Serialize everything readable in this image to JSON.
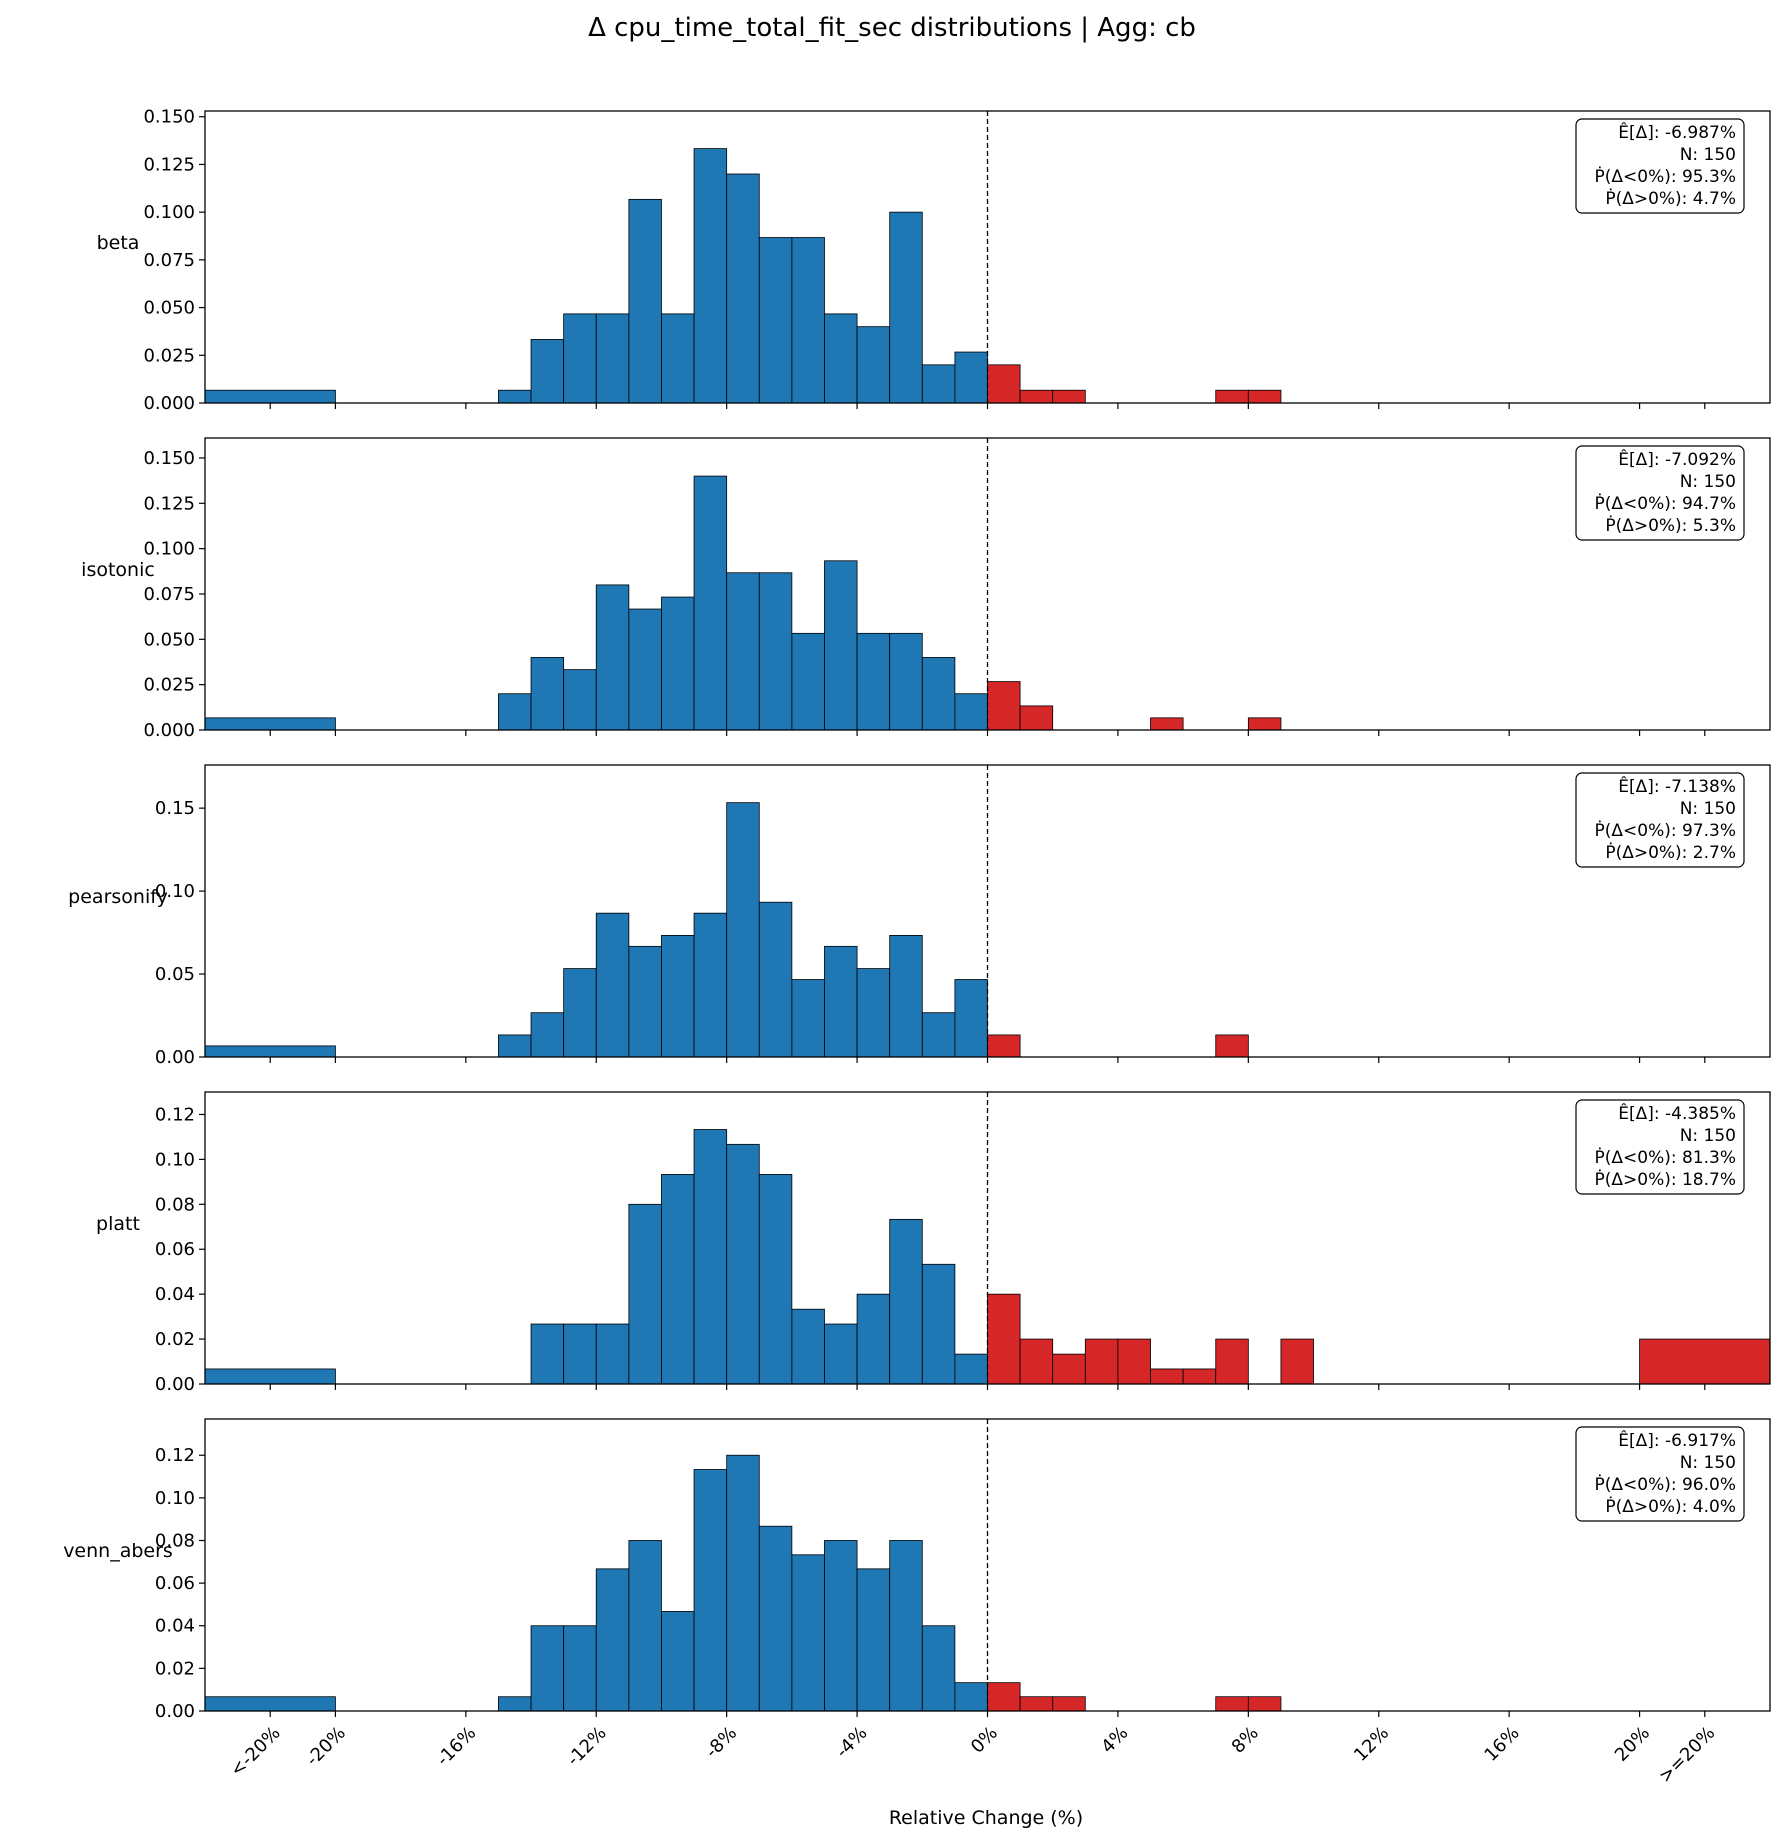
{
  "chart_data": {
    "type": "bar",
    "title": "Δ cpu_time_total_fit_sec distributions | Agg: cb",
    "xlabel": "Relative Change (%)",
    "x_ticks": [
      "<-20%",
      "-20%",
      "-16%",
      "-12%",
      "-8%",
      "-4%",
      "0%",
      "4%",
      "8%",
      "12%",
      "16%",
      "20%",
      ">=20%"
    ],
    "x_tick_values": [
      -22,
      -20,
      -16,
      -12,
      -8,
      -4,
      0,
      4,
      8,
      12,
      16,
      20,
      22
    ],
    "xlim": [
      -24,
      24
    ],
    "zero_line": 0,
    "colors": {
      "negative": "#1f77b4",
      "positive": "#d62728",
      "edge": "#000000"
    },
    "panels": [
      {
        "name": "beta",
        "ylim": [
          0,
          0.153
        ],
        "yticks": [
          "0.000",
          "0.025",
          "0.050",
          "0.075",
          "0.100",
          "0.125",
          "0.150"
        ],
        "ytick_values": [
          0,
          0.025,
          0.05,
          0.075,
          0.1,
          0.125,
          0.15
        ],
        "bins": [
          {
            "x0": -24,
            "x1": -20,
            "value": 0.0067
          },
          {
            "x0": -15,
            "x1": -14,
            "value": 0.0067
          },
          {
            "x0": -14,
            "x1": -13,
            "value": 0.0333
          },
          {
            "x0": -13,
            "x1": -12,
            "value": 0.0467
          },
          {
            "x0": -12,
            "x1": -11,
            "value": 0.0467
          },
          {
            "x0": -11,
            "x1": -10,
            "value": 0.1067
          },
          {
            "x0": -10,
            "x1": -9,
            "value": 0.0467
          },
          {
            "x0": -9,
            "x1": -8,
            "value": 0.1333
          },
          {
            "x0": -8,
            "x1": -7,
            "value": 0.12
          },
          {
            "x0": -7,
            "x1": -6,
            "value": 0.0867
          },
          {
            "x0": -6,
            "x1": -5,
            "value": 0.0867
          },
          {
            "x0": -5,
            "x1": -4,
            "value": 0.0467
          },
          {
            "x0": -4,
            "x1": -3,
            "value": 0.04
          },
          {
            "x0": -3,
            "x1": -2,
            "value": 0.1
          },
          {
            "x0": -2,
            "x1": -1,
            "value": 0.02
          },
          {
            "x0": -1,
            "x1": 0,
            "value": 0.0267
          },
          {
            "x0": 0,
            "x1": 1,
            "value": 0.02
          },
          {
            "x0": 1,
            "x1": 2,
            "value": 0.0067
          },
          {
            "x0": 2,
            "x1": 3,
            "value": 0.0067
          },
          {
            "x0": 7,
            "x1": 8,
            "value": 0.0067
          },
          {
            "x0": 8,
            "x1": 9,
            "value": 0.0067
          }
        ],
        "stats": [
          "Ê[Δ]: -6.987%",
          "N: 150",
          "Ṗ(Δ<0%): 95.3%",
          "Ṗ(Δ>0%): 4.7%"
        ]
      },
      {
        "name": "isotonic",
        "ylim": [
          0,
          0.161
        ],
        "yticks": [
          "0.000",
          "0.025",
          "0.050",
          "0.075",
          "0.100",
          "0.125",
          "0.150"
        ],
        "ytick_values": [
          0,
          0.025,
          0.05,
          0.075,
          0.1,
          0.125,
          0.15
        ],
        "bins": [
          {
            "x0": -24,
            "x1": -20,
            "value": 0.0067
          },
          {
            "x0": -15,
            "x1": -14,
            "value": 0.02
          },
          {
            "x0": -14,
            "x1": -13,
            "value": 0.04
          },
          {
            "x0": -13,
            "x1": -12,
            "value": 0.0333
          },
          {
            "x0": -12,
            "x1": -11,
            "value": 0.08
          },
          {
            "x0": -11,
            "x1": -10,
            "value": 0.0667
          },
          {
            "x0": -10,
            "x1": -9,
            "value": 0.0733
          },
          {
            "x0": -9,
            "x1": -8,
            "value": 0.14
          },
          {
            "x0": -8,
            "x1": -7,
            "value": 0.0867
          },
          {
            "x0": -7,
            "x1": -6,
            "value": 0.0867
          },
          {
            "x0": -6,
            "x1": -5,
            "value": 0.0533
          },
          {
            "x0": -5,
            "x1": -4,
            "value": 0.0933
          },
          {
            "x0": -4,
            "x1": -3,
            "value": 0.0533
          },
          {
            "x0": -3,
            "x1": -2,
            "value": 0.0533
          },
          {
            "x0": -2,
            "x1": -1,
            "value": 0.04
          },
          {
            "x0": -1,
            "x1": 0,
            "value": 0.02
          },
          {
            "x0": 0,
            "x1": 1,
            "value": 0.0267
          },
          {
            "x0": 1,
            "x1": 2,
            "value": 0.0133
          },
          {
            "x0": 5,
            "x1": 6,
            "value": 0.0067
          },
          {
            "x0": 8,
            "x1": 9,
            "value": 0.0067
          }
        ],
        "stats": [
          "Ê[Δ]: -7.092%",
          "N: 150",
          "Ṗ(Δ<0%): 94.7%",
          "Ṗ(Δ>0%): 5.3%"
        ]
      },
      {
        "name": "pearsonify",
        "ylim": [
          0,
          0.176
        ],
        "yticks": [
          "0.00",
          "0.05",
          "0.10",
          "0.15"
        ],
        "ytick_values": [
          0,
          0.05,
          0.1,
          0.15
        ],
        "bins": [
          {
            "x0": -24,
            "x1": -20,
            "value": 0.0067
          },
          {
            "x0": -15,
            "x1": -14,
            "value": 0.0133
          },
          {
            "x0": -14,
            "x1": -13,
            "value": 0.0267
          },
          {
            "x0": -13,
            "x1": -12,
            "value": 0.0533
          },
          {
            "x0": -12,
            "x1": -11,
            "value": 0.0867
          },
          {
            "x0": -11,
            "x1": -10,
            "value": 0.0667
          },
          {
            "x0": -10,
            "x1": -9,
            "value": 0.0733
          },
          {
            "x0": -9,
            "x1": -8,
            "value": 0.0867
          },
          {
            "x0": -8,
            "x1": -7,
            "value": 0.1533
          },
          {
            "x0": -7,
            "x1": -6,
            "value": 0.0933
          },
          {
            "x0": -6,
            "x1": -5,
            "value": 0.0467
          },
          {
            "x0": -5,
            "x1": -4,
            "value": 0.0667
          },
          {
            "x0": -4,
            "x1": -3,
            "value": 0.0533
          },
          {
            "x0": -3,
            "x1": -2,
            "value": 0.0733
          },
          {
            "x0": -2,
            "x1": -1,
            "value": 0.0267
          },
          {
            "x0": -1,
            "x1": 0,
            "value": 0.0467
          },
          {
            "x0": 0,
            "x1": 1,
            "value": 0.0133
          },
          {
            "x0": 7,
            "x1": 8,
            "value": 0.0133
          }
        ],
        "stats": [
          "Ê[Δ]: -7.138%",
          "N: 150",
          "Ṗ(Δ<0%): 97.3%",
          "Ṗ(Δ>0%): 2.7%"
        ]
      },
      {
        "name": "platt",
        "ylim": [
          0,
          0.13
        ],
        "yticks": [
          "0.00",
          "0.02",
          "0.04",
          "0.06",
          "0.08",
          "0.10",
          "0.12"
        ],
        "ytick_values": [
          0,
          0.02,
          0.04,
          0.06,
          0.08,
          0.1,
          0.12
        ],
        "bins": [
          {
            "x0": -24,
            "x1": -20,
            "value": 0.0067
          },
          {
            "x0": -14,
            "x1": -13,
            "value": 0.0267
          },
          {
            "x0": -13,
            "x1": -12,
            "value": 0.0267
          },
          {
            "x0": -12,
            "x1": -11,
            "value": 0.0267
          },
          {
            "x0": -11,
            "x1": -10,
            "value": 0.08
          },
          {
            "x0": -10,
            "x1": -9,
            "value": 0.0933
          },
          {
            "x0": -9,
            "x1": -8,
            "value": 0.1133
          },
          {
            "x0": -8,
            "x1": -7,
            "value": 0.1067
          },
          {
            "x0": -7,
            "x1": -6,
            "value": 0.0933
          },
          {
            "x0": -6,
            "x1": -5,
            "value": 0.0333
          },
          {
            "x0": -5,
            "x1": -4,
            "value": 0.0267
          },
          {
            "x0": -4,
            "x1": -3,
            "value": 0.04
          },
          {
            "x0": -3,
            "x1": -2,
            "value": 0.0733
          },
          {
            "x0": -2,
            "x1": -1,
            "value": 0.0533
          },
          {
            "x0": -1,
            "x1": 0,
            "value": 0.0133
          },
          {
            "x0": 0,
            "x1": 1,
            "value": 0.04
          },
          {
            "x0": 1,
            "x1": 2,
            "value": 0.02
          },
          {
            "x0": 2,
            "x1": 3,
            "value": 0.0133
          },
          {
            "x0": 3,
            "x1": 4,
            "value": 0.02
          },
          {
            "x0": 4,
            "x1": 5,
            "value": 0.02
          },
          {
            "x0": 5,
            "x1": 6,
            "value": 0.0067
          },
          {
            "x0": 6,
            "x1": 7,
            "value": 0.0067
          },
          {
            "x0": 7,
            "x1": 8,
            "value": 0.02
          },
          {
            "x0": 9,
            "x1": 10,
            "value": 0.02
          },
          {
            "x0": 20,
            "x1": 24,
            "value": 0.02
          }
        ],
        "stats": [
          "Ê[Δ]: -4.385%",
          "N: 150",
          "Ṗ(Δ<0%): 81.3%",
          "Ṗ(Δ>0%): 18.7%"
        ]
      },
      {
        "name": "venn_abers",
        "ylim": [
          0,
          0.137
        ],
        "yticks": [
          "0.00",
          "0.02",
          "0.04",
          "0.06",
          "0.08",
          "0.10",
          "0.12"
        ],
        "ytick_values": [
          0,
          0.02,
          0.04,
          0.06,
          0.08,
          0.1,
          0.12
        ],
        "bins": [
          {
            "x0": -24,
            "x1": -20,
            "value": 0.0067
          },
          {
            "x0": -15,
            "x1": -14,
            "value": 0.0067
          },
          {
            "x0": -14,
            "x1": -13,
            "value": 0.04
          },
          {
            "x0": -13,
            "x1": -12,
            "value": 0.04
          },
          {
            "x0": -12,
            "x1": -11,
            "value": 0.0667
          },
          {
            "x0": -11,
            "x1": -10,
            "value": 0.08
          },
          {
            "x0": -10,
            "x1": -9,
            "value": 0.0467
          },
          {
            "x0": -9,
            "x1": -8,
            "value": 0.1133
          },
          {
            "x0": -8,
            "x1": -7,
            "value": 0.12
          },
          {
            "x0": -7,
            "x1": -6,
            "value": 0.0867
          },
          {
            "x0": -6,
            "x1": -5,
            "value": 0.0733
          },
          {
            "x0": -5,
            "x1": -4,
            "value": 0.08
          },
          {
            "x0": -4,
            "x1": -3,
            "value": 0.0667
          },
          {
            "x0": -3,
            "x1": -2,
            "value": 0.08
          },
          {
            "x0": -2,
            "x1": -1,
            "value": 0.04
          },
          {
            "x0": -1,
            "x1": 0,
            "value": 0.0133
          },
          {
            "x0": 0,
            "x1": 1,
            "value": 0.0133
          },
          {
            "x0": 1,
            "x1": 2,
            "value": 0.0067
          },
          {
            "x0": 2,
            "x1": 3,
            "value": 0.0067
          },
          {
            "x0": 7,
            "x1": 8,
            "value": 0.0067
          },
          {
            "x0": 8,
            "x1": 9,
            "value": 0.0067
          }
        ],
        "stats": [
          "Ê[Δ]: -6.917%",
          "N: 150",
          "Ṗ(Δ<0%): 96.0%",
          "Ṗ(Δ>0%): 4.0%"
        ]
      }
    ]
  }
}
